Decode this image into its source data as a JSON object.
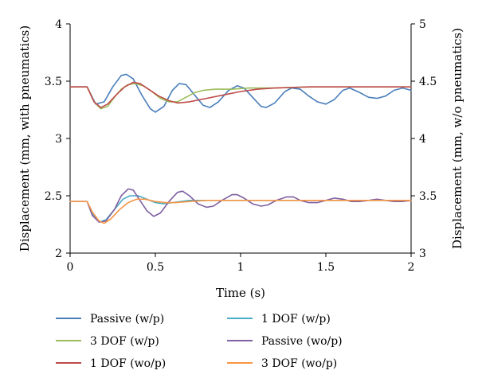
{
  "chart_data": {
    "type": "line",
    "title": "",
    "xlabel": "Time (s)",
    "ylabel_left": "Displacement (mm, with pneumatics)",
    "ylabel_right": "Displacement (mm, w/o pneumatics)",
    "xlim": [
      0,
      2
    ],
    "ylim_left": [
      2,
      4
    ],
    "ylim_right": [
      3,
      5
    ],
    "x_ticks": [
      "0",
      "0.5",
      "1",
      "1.5",
      "2"
    ],
    "y_left_ticks": [
      "2",
      "2.5",
      "3",
      "3.5",
      "4"
    ],
    "y_right_ticks": [
      "3",
      "3.5",
      "4",
      "4.5",
      "5"
    ],
    "grid": false,
    "legend_position": "bottom",
    "series": [
      {
        "name": "Passive (w/p)",
        "axis": "left",
        "color": "#4a7ebb",
        "points": [
          [
            0,
            3.45
          ],
          [
            0.1,
            3.45
          ],
          [
            0.15,
            3.3
          ],
          [
            0.2,
            3.32
          ],
          [
            0.25,
            3.45
          ],
          [
            0.3,
            3.55
          ],
          [
            0.33,
            3.56
          ],
          [
            0.37,
            3.52
          ],
          [
            0.42,
            3.38
          ],
          [
            0.47,
            3.26
          ],
          [
            0.5,
            3.23
          ],
          [
            0.55,
            3.28
          ],
          [
            0.6,
            3.42
          ],
          [
            0.64,
            3.48
          ],
          [
            0.68,
            3.47
          ],
          [
            0.73,
            3.38
          ],
          [
            0.78,
            3.29
          ],
          [
            0.82,
            3.27
          ],
          [
            0.87,
            3.32
          ],
          [
            0.93,
            3.42
          ],
          [
            0.98,
            3.46
          ],
          [
            1.02,
            3.44
          ],
          [
            1.07,
            3.36
          ],
          [
            1.12,
            3.28
          ],
          [
            1.15,
            3.27
          ],
          [
            1.2,
            3.31
          ],
          [
            1.26,
            3.41
          ],
          [
            1.3,
            3.44
          ],
          [
            1.35,
            3.43
          ],
          [
            1.4,
            3.37
          ],
          [
            1.45,
            3.32
          ],
          [
            1.5,
            3.3
          ],
          [
            1.55,
            3.34
          ],
          [
            1.6,
            3.42
          ],
          [
            1.64,
            3.44
          ],
          [
            1.7,
            3.4
          ],
          [
            1.75,
            3.36
          ],
          [
            1.8,
            3.35
          ],
          [
            1.85,
            3.37
          ],
          [
            1.9,
            3.42
          ],
          [
            1.95,
            3.44
          ],
          [
            2,
            3.42
          ]
        ]
      },
      {
        "name": "3 DOF (w/p)",
        "axis": "left",
        "color": "#9bbb59",
        "points": [
          [
            0,
            3.45
          ],
          [
            0.1,
            3.45
          ],
          [
            0.14,
            3.32
          ],
          [
            0.18,
            3.26
          ],
          [
            0.22,
            3.28
          ],
          [
            0.26,
            3.36
          ],
          [
            0.3,
            3.43
          ],
          [
            0.34,
            3.47
          ],
          [
            0.38,
            3.48
          ],
          [
            0.43,
            3.46
          ],
          [
            0.48,
            3.41
          ],
          [
            0.53,
            3.35
          ],
          [
            0.58,
            3.32
          ],
          [
            0.63,
            3.32
          ],
          [
            0.68,
            3.36
          ],
          [
            0.73,
            3.4
          ],
          [
            0.78,
            3.42
          ],
          [
            0.85,
            3.43
          ],
          [
            0.95,
            3.43
          ],
          [
            1.05,
            3.44
          ],
          [
            1.2,
            3.44
          ],
          [
            1.4,
            3.45
          ],
          [
            1.6,
            3.45
          ],
          [
            1.8,
            3.45
          ],
          [
            2,
            3.45
          ]
        ]
      },
      {
        "name": "1 DOF (wo/p)",
        "axis": "right",
        "color": "#be4b48",
        "points": [
          [
            0,
            4.45
          ],
          [
            0.1,
            4.45
          ],
          [
            0.14,
            4.32
          ],
          [
            0.18,
            4.27
          ],
          [
            0.22,
            4.3
          ],
          [
            0.27,
            4.38
          ],
          [
            0.32,
            4.45
          ],
          [
            0.37,
            4.49
          ],
          [
            0.41,
            4.48
          ],
          [
            0.46,
            4.43
          ],
          [
            0.52,
            4.37
          ],
          [
            0.58,
            4.33
          ],
          [
            0.63,
            4.31
          ],
          [
            0.7,
            4.32
          ],
          [
            0.8,
            4.35
          ],
          [
            0.9,
            4.38
          ],
          [
            1.0,
            4.41
          ],
          [
            1.1,
            4.43
          ],
          [
            1.2,
            4.44
          ],
          [
            1.4,
            4.45
          ],
          [
            1.6,
            4.45
          ],
          [
            1.8,
            4.45
          ],
          [
            2,
            4.45
          ]
        ]
      },
      {
        "name": "1 DOF (w/p)",
        "axis": "left",
        "color": "#4bacc6",
        "points": [
          [
            0,
            2.45
          ],
          [
            0.1,
            2.45
          ],
          [
            0.13,
            2.34
          ],
          [
            0.17,
            2.27
          ],
          [
            0.21,
            2.29
          ],
          [
            0.26,
            2.38
          ],
          [
            0.31,
            2.47
          ],
          [
            0.35,
            2.5
          ],
          [
            0.4,
            2.5
          ],
          [
            0.45,
            2.47
          ],
          [
            0.5,
            2.44
          ],
          [
            0.55,
            2.43
          ],
          [
            0.6,
            2.44
          ],
          [
            0.7,
            2.46
          ],
          [
            0.8,
            2.46
          ],
          [
            1.0,
            2.46
          ],
          [
            1.2,
            2.46
          ],
          [
            1.4,
            2.46
          ],
          [
            1.6,
            2.46
          ],
          [
            1.8,
            2.46
          ],
          [
            2,
            2.46
          ]
        ]
      },
      {
        "name": "Passive (wo/p)",
        "axis": "right",
        "color": "#7f60a2",
        "points": [
          [
            0,
            3.45
          ],
          [
            0.1,
            3.45
          ],
          [
            0.13,
            3.33
          ],
          [
            0.17,
            3.27
          ],
          [
            0.21,
            3.28
          ],
          [
            0.26,
            3.38
          ],
          [
            0.3,
            3.5
          ],
          [
            0.34,
            3.56
          ],
          [
            0.37,
            3.55
          ],
          [
            0.41,
            3.46
          ],
          [
            0.45,
            3.37
          ],
          [
            0.49,
            3.32
          ],
          [
            0.53,
            3.35
          ],
          [
            0.58,
            3.45
          ],
          [
            0.63,
            3.53
          ],
          [
            0.66,
            3.54
          ],
          [
            0.7,
            3.5
          ],
          [
            0.75,
            3.43
          ],
          [
            0.8,
            3.4
          ],
          [
            0.84,
            3.41
          ],
          [
            0.89,
            3.46
          ],
          [
            0.95,
            3.51
          ],
          [
            0.98,
            3.51
          ],
          [
            1.02,
            3.48
          ],
          [
            1.07,
            3.43
          ],
          [
            1.12,
            3.41
          ],
          [
            1.16,
            3.42
          ],
          [
            1.21,
            3.46
          ],
          [
            1.27,
            3.49
          ],
          [
            1.31,
            3.49
          ],
          [
            1.35,
            3.46
          ],
          [
            1.4,
            3.44
          ],
          [
            1.45,
            3.44
          ],
          [
            1.5,
            3.46
          ],
          [
            1.55,
            3.48
          ],
          [
            1.6,
            3.47
          ],
          [
            1.65,
            3.45
          ],
          [
            1.7,
            3.45
          ],
          [
            1.75,
            3.46
          ],
          [
            1.8,
            3.47
          ],
          [
            1.85,
            3.46
          ],
          [
            1.9,
            3.45
          ],
          [
            1.95,
            3.45
          ],
          [
            2,
            3.46
          ]
        ]
      },
      {
        "name": "3 DOF (wo/p)",
        "axis": "right",
        "color": "#f79646",
        "points": [
          [
            0,
            3.45
          ],
          [
            0.1,
            3.45
          ],
          [
            0.13,
            3.36
          ],
          [
            0.17,
            3.28
          ],
          [
            0.2,
            3.26
          ],
          [
            0.24,
            3.3
          ],
          [
            0.29,
            3.38
          ],
          [
            0.34,
            3.44
          ],
          [
            0.39,
            3.47
          ],
          [
            0.44,
            3.47
          ],
          [
            0.5,
            3.45
          ],
          [
            0.56,
            3.44
          ],
          [
            0.62,
            3.44
          ],
          [
            0.7,
            3.45
          ],
          [
            0.8,
            3.46
          ],
          [
            1.0,
            3.46
          ],
          [
            1.2,
            3.46
          ],
          [
            1.4,
            3.46
          ],
          [
            1.6,
            3.46
          ],
          [
            1.8,
            3.46
          ],
          [
            2,
            3.46
          ]
        ]
      }
    ]
  }
}
